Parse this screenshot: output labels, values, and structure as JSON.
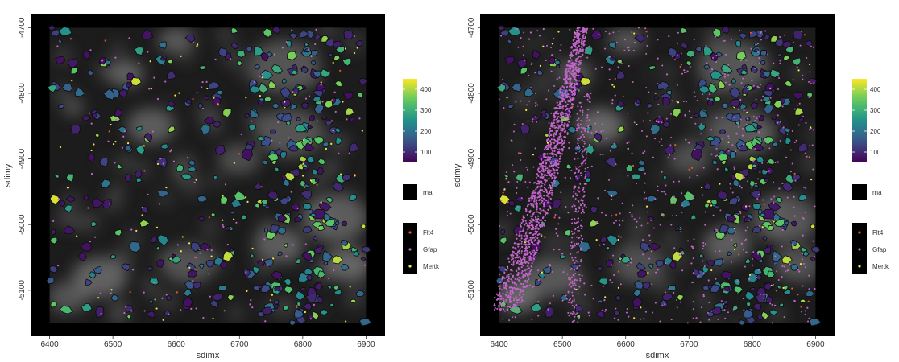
{
  "chart_data": [
    {
      "type": "scatter",
      "panel": "left",
      "xlabel": "sdimx",
      "ylabel": "sdimy",
      "xlim": [
        6370,
        6930
      ],
      "ylim": [
        -5170,
        -4680
      ],
      "x_ticks": [
        "6400",
        "6500",
        "6600",
        "6700",
        "6800",
        "6900"
      ],
      "y_ticks": [
        "-4700",
        "-4800",
        "-4900",
        "-5000",
        "-5100"
      ],
      "background": "black",
      "grid": false,
      "colorbar": {
        "ticks": [
          "100",
          "200",
          "300",
          "400"
        ],
        "range": [
          50,
          450
        ],
        "palette": "viridis"
      },
      "image_legend": {
        "label": "rna"
      },
      "point_legend": [
        {
          "name": "Flt4",
          "color": "#e05a2b"
        },
        {
          "name": "Gfap",
          "color": "#c266c9"
        },
        {
          "name": "Mertk",
          "color": "#f2e84b"
        }
      ]
    },
    {
      "type": "scatter",
      "panel": "right",
      "xlabel": "sdimx",
      "ylabel": "sdimy",
      "xlim": [
        6370,
        6930
      ],
      "ylim": [
        -5170,
        -4680
      ],
      "x_ticks": [
        "6400",
        "6500",
        "6600",
        "6700",
        "6800",
        "6900"
      ],
      "y_ticks": [
        "-4700",
        "-4800",
        "-4900",
        "-5000",
        "-5100"
      ],
      "background": "black",
      "grid": false,
      "colorbar": {
        "ticks": [
          "100",
          "200",
          "300",
          "400"
        ],
        "range": [
          50,
          450
        ],
        "palette": "viridis"
      },
      "image_legend": {
        "label": "rna"
      },
      "point_legend": [
        {
          "name": "Flt4",
          "color": "#e05a2b"
        },
        {
          "name": "Gfap",
          "color": "#c266c9"
        },
        {
          "name": "Mertk",
          "color": "#f2e84b"
        }
      ]
    }
  ]
}
